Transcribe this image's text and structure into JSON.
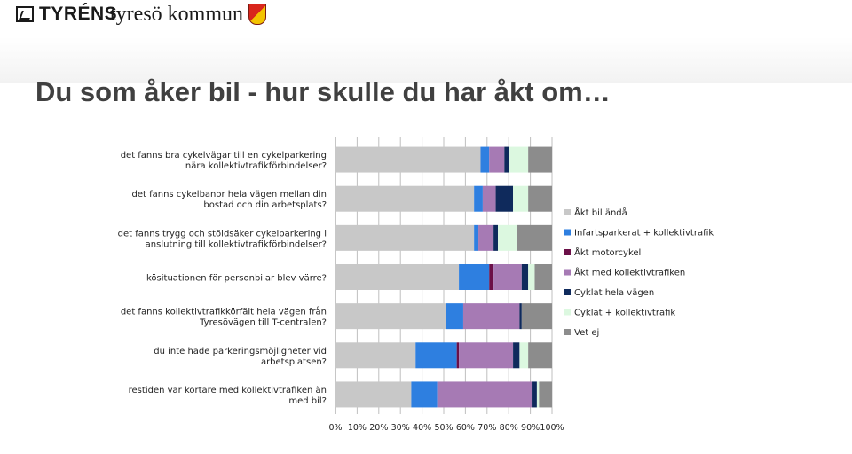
{
  "header": {
    "company": "TYRÉNS",
    "municipality": "tyresö kommun",
    "title": "Du som åker bil - hur skulle du har åkt om…"
  },
  "chart_data": {
    "type": "bar",
    "orientation": "horizontal",
    "stacked": true,
    "percent": true,
    "categories": [
      [
        "det fanns bra cykelvägar till en cykelparkering",
        "nära kollektivtrafikförbindelser?"
      ],
      [
        "det fanns cykelbanor hela vägen mellan din",
        "bostad och din arbetsplats?"
      ],
      [
        "det fanns trygg och stöldsäker cykelparkering i",
        "anslutning till kollektivtrafikförbindelser?"
      ],
      [
        "kösituationen för personbilar blev värre?"
      ],
      [
        "det fanns kollektivtrafikkörfält hela vägen från",
        "Tyresövägen till T-centralen?"
      ],
      [
        "du inte hade parkeringsmöjligheter vid",
        "arbetsplatsen?"
      ],
      [
        "restiden var kortare med kollektivtrafiken än",
        "med bil?"
      ]
    ],
    "series": [
      {
        "name": "Åkt bil ändå",
        "color": "#c8c8c8",
        "values": [
          67,
          64,
          64,
          57,
          51,
          37,
          35
        ]
      },
      {
        "name": "Infartsparkerat + kollektivtrafik",
        "color": "#2e7fe0",
        "values": [
          4,
          4,
          2,
          14,
          8,
          19,
          12
        ]
      },
      {
        "name": "Åkt motorcykel",
        "color": "#6b1048",
        "values": [
          0,
          0,
          0,
          2,
          0,
          1,
          0
        ]
      },
      {
        "name": "Åkt med kollektivtrafiken",
        "color": "#a67ab4",
        "values": [
          7,
          6,
          7,
          13,
          26,
          25,
          44
        ]
      },
      {
        "name": "Cyklat hela vägen",
        "color": "#0f2a5c",
        "values": [
          2,
          8,
          2,
          3,
          1,
          3,
          2
        ]
      },
      {
        "name": "Cyklat + kollektivtrafik",
        "color": "#dcf8e0",
        "values": [
          9,
          7,
          9,
          3,
          0,
          4,
          1
        ]
      },
      {
        "name": "Vet ej",
        "color": "#8c8c8c",
        "values": [
          11,
          11,
          16,
          8,
          14,
          11,
          6
        ]
      }
    ],
    "x_ticks": [
      "0%",
      "10%",
      "20%",
      "30%",
      "40%",
      "50%",
      "60%",
      "70%",
      "80%",
      "90%",
      "100%"
    ],
    "xlim": [
      0,
      100
    ],
    "grid": true,
    "legend": "right"
  }
}
